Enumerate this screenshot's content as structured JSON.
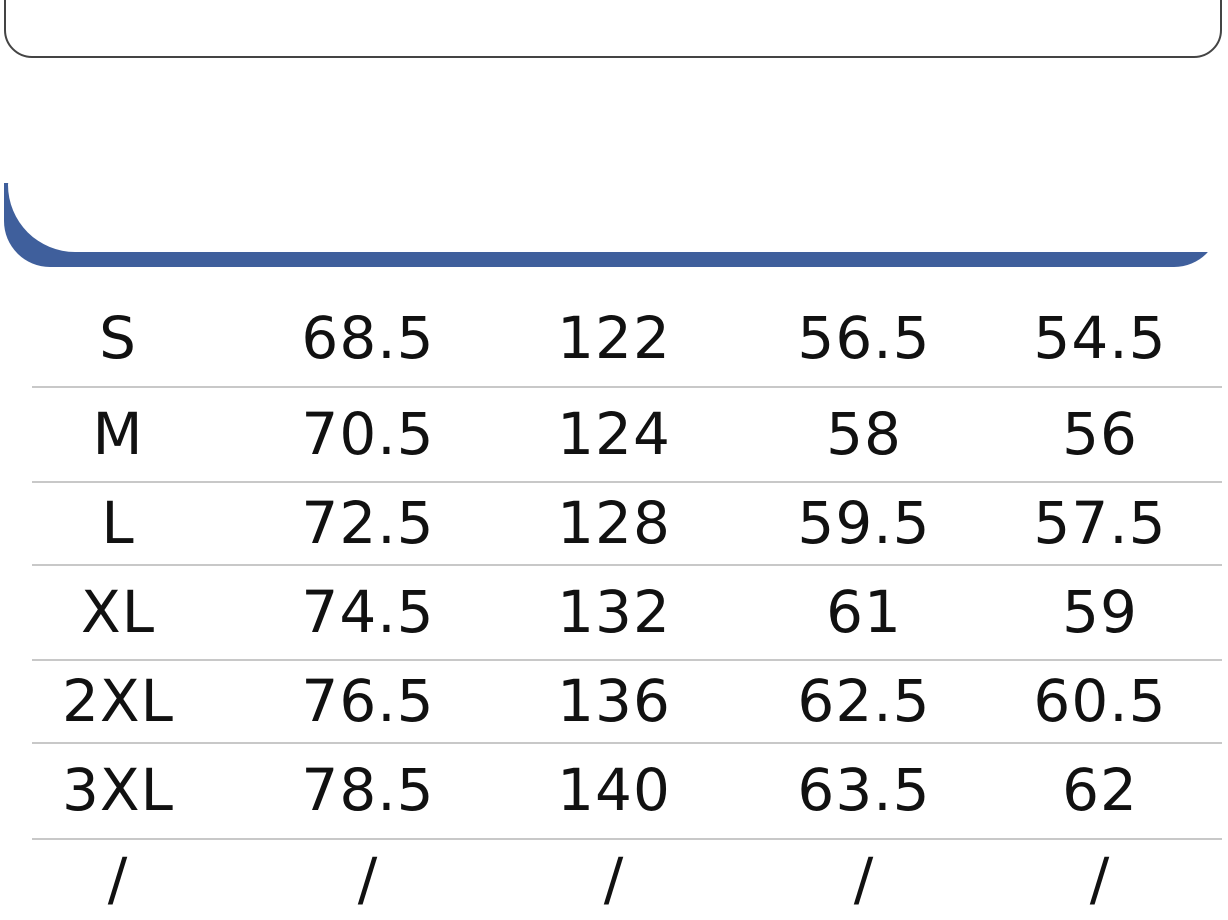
{
  "colors": {
    "header_band": "#3f5f9c",
    "text": "#111111",
    "divider": "#c8c8c8"
  },
  "rows": [
    {
      "size": "S",
      "v1": "68.5",
      "v2": "122",
      "v3": "56.5",
      "v4": "54.5"
    },
    {
      "size": "M",
      "v1": "70.5",
      "v2": "124",
      "v3": "58",
      "v4": "56"
    },
    {
      "size": "L",
      "v1": "72.5",
      "v2": "128",
      "v3": "59.5",
      "v4": "57.5"
    },
    {
      "size": "XL",
      "v1": "74.5",
      "v2": "132",
      "v3": "61",
      "v4": "59"
    },
    {
      "size": "2XL",
      "v1": "76.5",
      "v2": "136",
      "v3": "62.5",
      "v4": "60.5"
    },
    {
      "size": "3XL",
      "v1": "78.5",
      "v2": "140",
      "v3": "63.5",
      "v4": "62"
    },
    {
      "size": "/",
      "v1": "/",
      "v2": "/",
      "v3": "/",
      "v4": "/"
    }
  ]
}
